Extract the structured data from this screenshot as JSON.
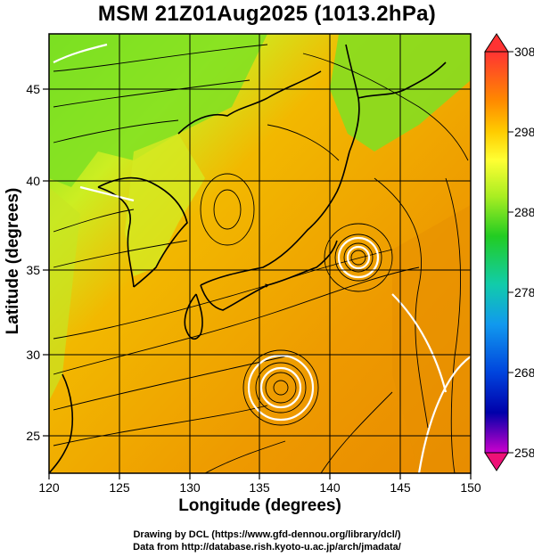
{
  "title": "MSM 21Z01Aug2025 (1013.2hPa)",
  "xlabel": "Longitude (degrees)",
  "ylabel": "Latitude  (degrees)",
  "credits": [
    "Drawing by DCL (https://www.gfd-dennou.org/library/dcl/)",
    "Data from http://database.rish.kyoto-u.ac.jp/arch/jmadata/"
  ],
  "map": {
    "lon_ticks": [
      "120",
      "125",
      "130",
      "135",
      "140",
      "145",
      "150"
    ],
    "lat_ticks": [
      "25",
      "30",
      "35",
      "40",
      "45"
    ],
    "lon_range": [
      120,
      150
    ],
    "lat_range": [
      22.4,
      47.6
    ],
    "field": "surface temperature (K) with streamlines",
    "cyclones": [
      {
        "name": "northern-vortex",
        "lon": 142.0,
        "lat": 36.0
      },
      {
        "name": "southern-vortex",
        "lon": 136.5,
        "lat": 27.0
      }
    ]
  },
  "colorbar": {
    "labels": [
      "308",
      "298",
      "288",
      "278",
      "268",
      "258"
    ],
    "min": 258,
    "max": 308,
    "colors": [
      "#ee1166",
      "#ff3333",
      "#ff8800",
      "#ffcc00",
      "#ffff33",
      "#aaee22",
      "#22cc22",
      "#11ccaa",
      "#1199ee",
      "#0044dd",
      "#0000aa",
      "#cc00cc"
    ]
  }
}
